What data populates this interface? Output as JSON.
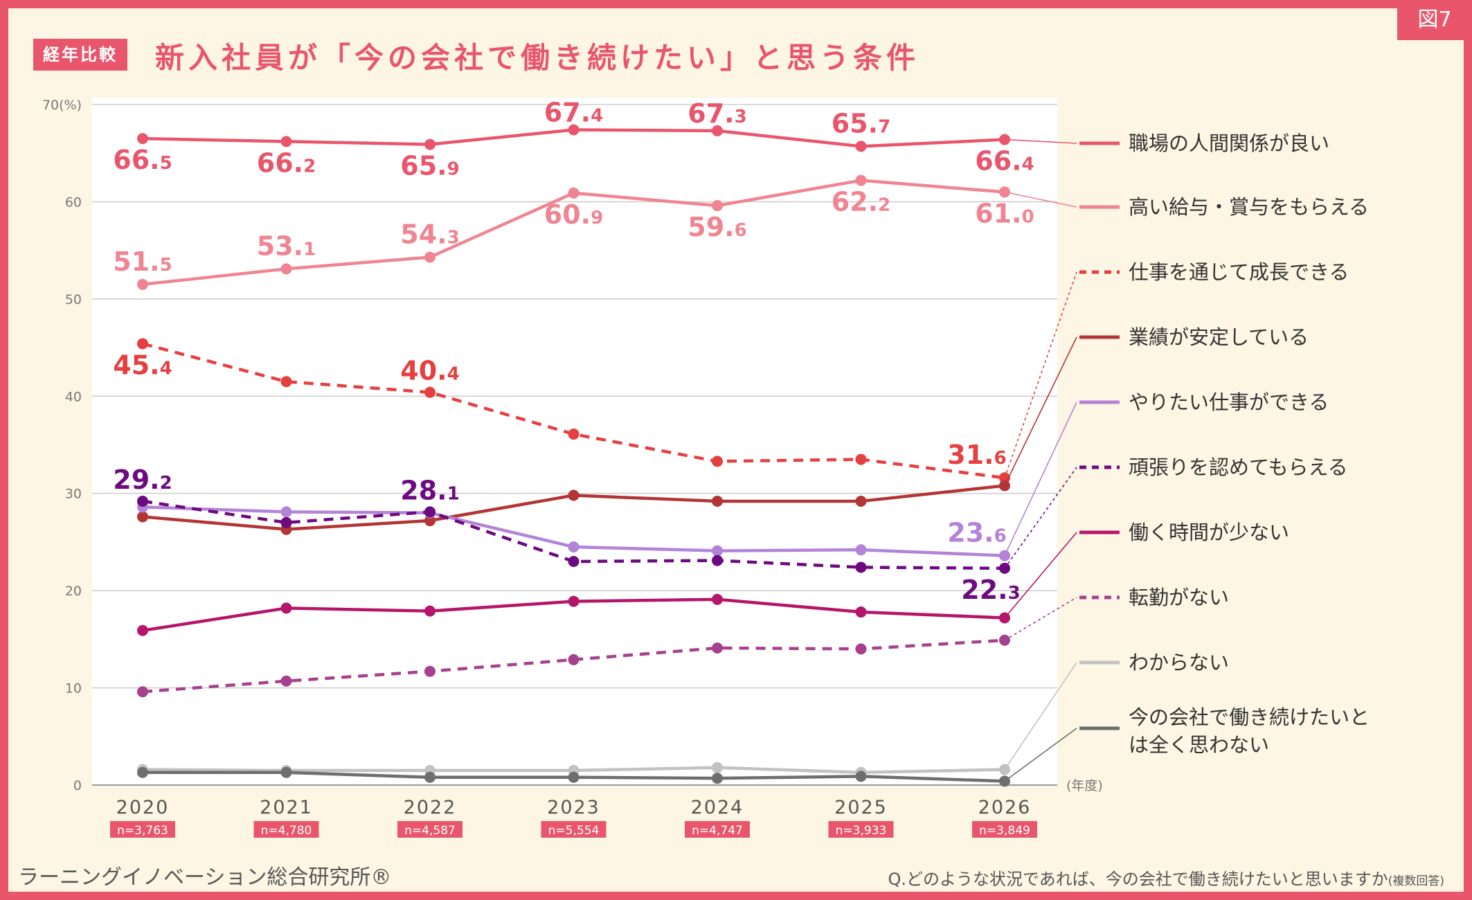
{
  "figure_badge": "図7",
  "header": {
    "tag": "経年比較",
    "title": "新入社員が「今の会社で働き続けたい」と思う条件"
  },
  "footer": {
    "publisher": "ラーニングイノベーション総合研究所®",
    "question": "Q.どのような状況であれば、今の会社で働き続けたいと思いますか",
    "question_note": "(複数回答)"
  },
  "colors": {
    "frame": "#e9566b",
    "background": "#fdf6e4",
    "plot_background": "#ffffff"
  },
  "chart_data": {
    "type": "line",
    "title": "新入社員が「今の会社で働き続けたい」と思う条件",
    "y_unit_label": "70(%)",
    "x_unit_label": "(年度)",
    "ylim": [
      0,
      70
    ],
    "yticks": [
      0,
      10,
      20,
      30,
      40,
      50,
      60
    ],
    "grid": true,
    "legend_position": "right",
    "x": [
      "2020",
      "2021",
      "2022",
      "2023",
      "2024",
      "2025",
      "2026"
    ],
    "sample_sizes": [
      "n=3,763",
      "n=4,780",
      "n=4,587",
      "n=5,554",
      "n=4,747",
      "n=3,933",
      "n=3,849"
    ],
    "series": [
      {
        "name": "職場の人間関係が良い",
        "color": "#e9566b",
        "dashed": false,
        "values": [
          66.5,
          66.2,
          65.9,
          67.4,
          67.3,
          65.7,
          66.4
        ],
        "labels": [
          "66.5",
          "66.2",
          "65.9",
          "67.4",
          "67.3",
          "65.7",
          "66.4"
        ]
      },
      {
        "name": "高い給与・賞与をもらえる",
        "color": "#f08491",
        "dashed": false,
        "values": [
          51.5,
          53.1,
          54.3,
          60.9,
          59.6,
          62.2,
          61.0
        ],
        "labels": [
          "51.5",
          "53.1",
          "54.3",
          "60.9",
          "59.6",
          "62.2",
          "61.0"
        ]
      },
      {
        "name": "仕事を通じて成長できる",
        "color": "#e5403f",
        "dashed": true,
        "values": [
          45.4,
          41.5,
          40.4,
          36.1,
          33.3,
          33.5,
          31.6
        ],
        "labels": [
          "45.4",
          null,
          "40.4",
          null,
          null,
          null,
          "31.6"
        ]
      },
      {
        "name": "業績が安定している",
        "color": "#b33535",
        "dashed": false,
        "values": [
          27.6,
          26.3,
          27.2,
          29.8,
          29.2,
          29.2,
          30.8
        ],
        "labels": [
          null,
          null,
          null,
          null,
          null,
          null,
          null
        ]
      },
      {
        "name": "やりたい仕事ができる",
        "color": "#b383d8",
        "dashed": false,
        "values": [
          28.6,
          28.1,
          28.0,
          24.5,
          24.1,
          24.2,
          23.6
        ],
        "labels": [
          null,
          null,
          null,
          null,
          null,
          null,
          "23.6"
        ]
      },
      {
        "name": "頑張りを認めてもらえる",
        "color": "#6d0a80",
        "dashed": true,
        "values": [
          29.2,
          27.0,
          28.1,
          23.0,
          23.1,
          22.4,
          22.3
        ],
        "labels": [
          "29.2",
          null,
          "28.1",
          null,
          null,
          null,
          "22.3"
        ]
      },
      {
        "name": "働く時間が少ない",
        "color": "#b5166b",
        "dashed": false,
        "values": [
          15.9,
          18.2,
          17.9,
          18.9,
          19.1,
          17.8,
          17.2
        ],
        "labels": [
          null,
          null,
          null,
          null,
          null,
          null,
          null
        ]
      },
      {
        "name": "転勤がない",
        "color": "#a6418f",
        "dashed": true,
        "values": [
          9.6,
          10.7,
          11.7,
          12.9,
          14.1,
          14.0,
          14.9
        ],
        "labels": [
          null,
          null,
          null,
          null,
          null,
          null,
          null
        ]
      },
      {
        "name": "わからない",
        "color": "#c2c2c2",
        "dashed": false,
        "values": [
          1.6,
          1.5,
          1.5,
          1.5,
          1.8,
          1.3,
          1.6
        ],
        "labels": [
          null,
          null,
          null,
          null,
          null,
          null,
          null
        ]
      },
      {
        "name": "今の会社で働き続けたいとは全く思わない",
        "color": "#6e6e6e",
        "dashed": false,
        "values": [
          1.3,
          1.3,
          0.8,
          0.8,
          0.7,
          0.9,
          0.4
        ],
        "labels": [
          null,
          null,
          null,
          null,
          null,
          null,
          null
        ]
      }
    ]
  }
}
